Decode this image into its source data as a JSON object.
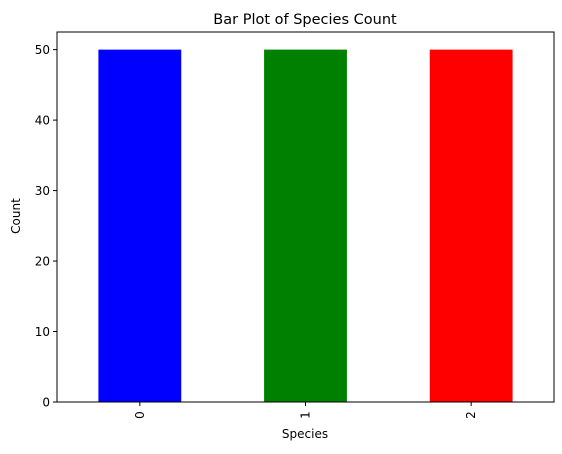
{
  "chart_data": {
    "type": "bar",
    "title": "Bar Plot of Species Count",
    "xlabel": "Species",
    "ylabel": "Count",
    "categories": [
      "0",
      "1",
      "2"
    ],
    "values": [
      50,
      50,
      50
    ],
    "bar_colors": [
      "#0000ff",
      "#008000",
      "#ff0000"
    ],
    "ylim": [
      0,
      52.5
    ],
    "yticks": [
      0,
      10,
      20,
      30,
      40,
      50
    ],
    "x_tick_rotation": "vertical",
    "grid": false,
    "legend": "none"
  }
}
